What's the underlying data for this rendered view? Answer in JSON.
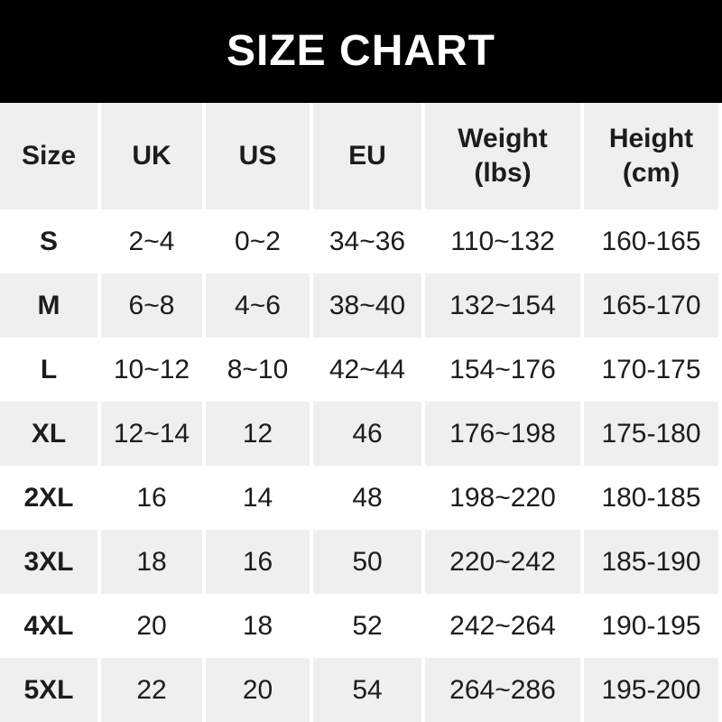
{
  "banner": {
    "title": "SIZE CHART",
    "bg_color": "#000000",
    "text_color": "#ffffff"
  },
  "colors": {
    "stripe_gray": "#efefef",
    "separator_white": "#ffffff",
    "text_dark": "#1c1c1e"
  },
  "table": {
    "headers": [
      {
        "line1": "Size"
      },
      {
        "line1": "UK"
      },
      {
        "line1": "US"
      },
      {
        "line1": "EU"
      },
      {
        "line1": "Weight",
        "line2": "(lbs)"
      },
      {
        "line1": "Height",
        "line2": "(cm)"
      }
    ],
    "rows": [
      {
        "size": "S",
        "uk": "2~4",
        "us": "0~2",
        "eu": "34~36",
        "weight": "110~132",
        "height": "160-165"
      },
      {
        "size": "M",
        "uk": "6~8",
        "us": "4~6",
        "eu": "38~40",
        "weight": "132~154",
        "height": "165-170"
      },
      {
        "size": "L",
        "uk": "10~12",
        "us": "8~10",
        "eu": "42~44",
        "weight": "154~176",
        "height": "170-175"
      },
      {
        "size": "XL",
        "uk": "12~14",
        "us": "12",
        "eu": "46",
        "weight": "176~198",
        "height": "175-180"
      },
      {
        "size": "2XL",
        "uk": "16",
        "us": "14",
        "eu": "48",
        "weight": "198~220",
        "height": "180-185"
      },
      {
        "size": "3XL",
        "uk": "18",
        "us": "16",
        "eu": "50",
        "weight": "220~242",
        "height": "185-190"
      },
      {
        "size": "4XL",
        "uk": "20",
        "us": "18",
        "eu": "52",
        "weight": "242~264",
        "height": "190-195"
      },
      {
        "size": "5XL",
        "uk": "22",
        "us": "20",
        "eu": "54",
        "weight": "264~286",
        "height": "195-200"
      }
    ]
  },
  "chart_data": {
    "type": "table",
    "title": "SIZE CHART",
    "columns": [
      "Size",
      "UK",
      "US",
      "EU",
      "Weight (lbs)",
      "Height (cm)"
    ],
    "rows": [
      [
        "S",
        "2~4",
        "0~2",
        "34~36",
        "110~132",
        "160-165"
      ],
      [
        "M",
        "6~8",
        "4~6",
        "38~40",
        "132~154",
        "165-170"
      ],
      [
        "L",
        "10~12",
        "8~10",
        "42~44",
        "154~176",
        "170-175"
      ],
      [
        "XL",
        "12~14",
        "12",
        "46",
        "176~198",
        "175-180"
      ],
      [
        "2XL",
        "16",
        "14",
        "48",
        "198~220",
        "180-185"
      ],
      [
        "3XL",
        "18",
        "16",
        "50",
        "220~242",
        "185-190"
      ],
      [
        "4XL",
        "20",
        "18",
        "52",
        "242~264",
        "190-195"
      ],
      [
        "5XL",
        "22",
        "20",
        "54",
        "264~286",
        "195-200"
      ]
    ],
    "layout": {
      "header_fill": "#efefef",
      "row_stripe_fills": [
        "#ffffff",
        "#efefef"
      ],
      "title_banner_fill": "#000000",
      "title_color": "#ffffff"
    }
  }
}
